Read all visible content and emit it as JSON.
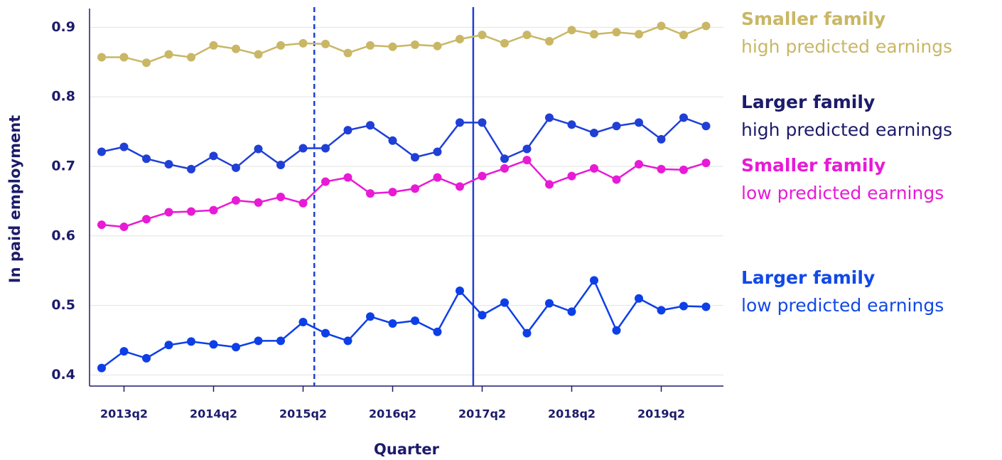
{
  "chart_data": {
    "type": "line",
    "x_label": "Quarter",
    "y_label": "In paid employment",
    "categories": [
      null,
      "2013q2",
      null,
      null,
      null,
      "2014q2",
      null,
      null,
      null,
      "2015q2",
      null,
      null,
      null,
      "2016q2",
      null,
      null,
      null,
      "2017q2",
      null,
      null,
      null,
      "2018q2",
      null,
      null,
      null,
      "2019q2",
      null,
      null
    ],
    "ylim": [
      0.384,
      0.927
    ],
    "yticks": [
      0.4,
      0.5,
      0.6,
      0.7,
      0.8,
      0.9
    ],
    "grid": true,
    "reference_lines": [
      {
        "position": 9.5,
        "dashed": true,
        "color": "#1f3fd6"
      },
      {
        "position": 16.6,
        "dashed": false,
        "color": "#1f3fd6"
      }
    ],
    "series": [
      {
        "name": "Smaller family",
        "detail": "high predicted earnings",
        "color": "#c9b765",
        "label_color": "#c9b765",
        "values": [
          0.857,
          0.857,
          0.849,
          0.861,
          0.857,
          0.874,
          0.869,
          0.861,
          0.874,
          0.877,
          0.876,
          0.863,
          0.874,
          0.872,
          0.875,
          0.873,
          0.883,
          0.889,
          0.877,
          0.889,
          0.88,
          0.896,
          0.89,
          0.893,
          0.89,
          0.902,
          0.889,
          0.902
        ]
      },
      {
        "name": "Larger family",
        "detail": "high predicted earnings",
        "color": "#1f3fd6",
        "label_color": "#1c1b6b",
        "values": [
          0.721,
          0.728,
          0.711,
          0.703,
          0.696,
          0.715,
          0.698,
          0.725,
          0.702,
          0.726,
          0.726,
          0.752,
          0.759,
          0.737,
          0.713,
          0.721,
          0.763,
          0.763,
          0.711,
          0.725,
          0.77,
          0.76,
          0.748,
          0.758,
          0.763,
          0.739,
          0.77,
          0.758
        ]
      },
      {
        "name": "Smaller family",
        "detail": "low predicted earnings",
        "color": "#e81ad6",
        "label_color": "#e81ad6",
        "values": [
          0.616,
          0.613,
          0.624,
          0.634,
          0.635,
          0.637,
          0.651,
          0.648,
          0.656,
          0.647,
          0.678,
          0.684,
          0.661,
          0.663,
          0.668,
          0.684,
          0.671,
          0.686,
          0.697,
          0.709,
          0.674,
          0.686,
          0.697,
          0.681,
          0.703,
          0.696,
          0.695,
          0.705
        ]
      },
      {
        "name": "Larger family",
        "detail": "low predicted earnings",
        "color": "#0d3fe8",
        "label_color": "#1148e8",
        "values": [
          0.41,
          0.434,
          0.424,
          0.443,
          0.448,
          0.444,
          0.44,
          0.449,
          0.449,
          0.476,
          0.46,
          0.449,
          0.484,
          0.474,
          0.478,
          0.462,
          0.521,
          0.486,
          0.504,
          0.46,
          0.503,
          0.491,
          0.536,
          0.464,
          0.51,
          0.493,
          0.499,
          0.498
        ]
      }
    ]
  }
}
